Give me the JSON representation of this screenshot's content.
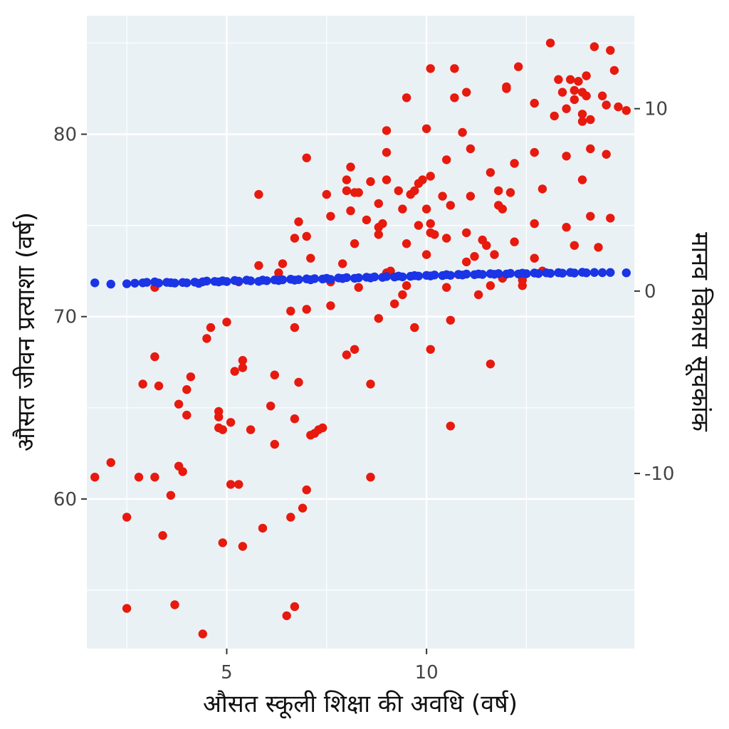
{
  "chart_data": {
    "type": "scatter",
    "xlabel": "औसत स्कूली शिक्षा की अवधि (वर्ष)",
    "ylabel": "औसत जीवन प्रत्याशा (वर्ष)",
    "y2label": "मानव विकास सूचकांक",
    "xlim": [
      1.5,
      15.2
    ],
    "ylim": [
      51.8,
      86.5
    ],
    "y2lim": [
      -19.6,
      15.1
    ],
    "x_ticks": [
      5,
      10
    ],
    "x_tick_labels": [
      "5",
      "10"
    ],
    "y_ticks": [
      60,
      70,
      80
    ],
    "y_tick_labels": [
      "60",
      "70",
      "80"
    ],
    "y2_ticks": [
      -10,
      0,
      10
    ],
    "y2_tick_labels": [
      "-10",
      "0",
      "10"
    ],
    "grid": true,
    "legend": "none",
    "colors": {
      "series1": "#e8190d",
      "series2": "#1a34e6",
      "panel": "#eaf1f5",
      "grid": "#ffffff"
    },
    "series": [
      {
        "axis": "left",
        "color": "#e8190d",
        "points": [
          [
            1.7,
            61.2
          ],
          [
            2.1,
            62.0
          ],
          [
            2.5,
            59.0
          ],
          [
            2.5,
            54.0
          ],
          [
            2.8,
            61.2
          ],
          [
            2.9,
            66.3
          ],
          [
            3.2,
            61.2
          ],
          [
            3.2,
            67.8
          ],
          [
            3.3,
            66.2
          ],
          [
            3.2,
            71.6
          ],
          [
            3.4,
            58.0
          ],
          [
            3.6,
            60.2
          ],
          [
            3.7,
            54.2
          ],
          [
            3.8,
            65.2
          ],
          [
            3.8,
            61.8
          ],
          [
            3.9,
            61.5
          ],
          [
            4.0,
            64.6
          ],
          [
            4.0,
            66.0
          ],
          [
            4.1,
            66.7
          ],
          [
            4.5,
            68.8
          ],
          [
            4.6,
            69.4
          ],
          [
            4.4,
            52.6
          ],
          [
            4.8,
            64.8
          ],
          [
            4.8,
            64.5
          ],
          [
            4.8,
            63.9
          ],
          [
            4.9,
            63.8
          ],
          [
            4.9,
            57.6
          ],
          [
            5.0,
            69.7
          ],
          [
            5.1,
            64.2
          ],
          [
            5.1,
            60.8
          ],
          [
            5.2,
            67.0
          ],
          [
            5.3,
            71.9
          ],
          [
            5.3,
            60.8
          ],
          [
            5.4,
            67.2
          ],
          [
            5.4,
            67.6
          ],
          [
            5.4,
            57.4
          ],
          [
            5.6,
            63.8
          ],
          [
            5.8,
            76.7
          ],
          [
            5.8,
            72.8
          ],
          [
            5.9,
            58.4
          ],
          [
            6.1,
            65.1
          ],
          [
            6.2,
            66.8
          ],
          [
            6.2,
            63.0
          ],
          [
            6.3,
            72.4
          ],
          [
            6.4,
            72.9
          ],
          [
            6.5,
            53.6
          ],
          [
            6.6,
            59.0
          ],
          [
            6.6,
            70.3
          ],
          [
            6.7,
            74.3
          ],
          [
            6.7,
            69.4
          ],
          [
            6.7,
            64.4
          ],
          [
            6.7,
            54.1
          ],
          [
            6.8,
            75.2
          ],
          [
            6.8,
            66.4
          ],
          [
            6.9,
            59.5
          ],
          [
            7.0,
            74.4
          ],
          [
            7.0,
            70.4
          ],
          [
            7.0,
            78.7
          ],
          [
            7.0,
            60.5
          ],
          [
            7.1,
            73.2
          ],
          [
            7.1,
            63.5
          ],
          [
            7.2,
            63.6
          ],
          [
            7.3,
            63.8
          ],
          [
            7.4,
            63.9
          ],
          [
            7.5,
            76.7
          ],
          [
            7.6,
            71.9
          ],
          [
            7.6,
            75.5
          ],
          [
            7.6,
            70.6
          ],
          [
            7.9,
            72.9
          ],
          [
            8.0,
            77.5
          ],
          [
            8.0,
            76.9
          ],
          [
            8.0,
            67.9
          ],
          [
            8.1,
            78.2
          ],
          [
            8.1,
            75.8
          ],
          [
            8.2,
            76.8
          ],
          [
            8.2,
            74.0
          ],
          [
            8.2,
            68.2
          ],
          [
            8.3,
            76.8
          ],
          [
            8.3,
            71.6
          ],
          [
            8.5,
            75.3
          ],
          [
            8.6,
            77.4
          ],
          [
            8.6,
            66.3
          ],
          [
            8.6,
            61.2
          ],
          [
            8.8,
            74.9
          ],
          [
            8.8,
            74.5
          ],
          [
            8.8,
            76.2
          ],
          [
            8.8,
            69.9
          ],
          [
            8.9,
            75.1
          ],
          [
            9.0,
            80.2
          ],
          [
            9.0,
            79.0
          ],
          [
            9.0,
            77.5
          ],
          [
            9.0,
            72.4
          ],
          [
            9.1,
            72.5
          ],
          [
            9.2,
            70.7
          ],
          [
            9.3,
            76.9
          ],
          [
            9.4,
            75.9
          ],
          [
            9.4,
            71.2
          ],
          [
            9.5,
            71.7
          ],
          [
            9.5,
            74.0
          ],
          [
            9.5,
            82.0
          ],
          [
            9.6,
            76.7
          ],
          [
            9.7,
            76.9
          ],
          [
            9.7,
            69.4
          ],
          [
            9.8,
            77.3
          ],
          [
            9.8,
            75.0
          ],
          [
            9.9,
            77.5
          ],
          [
            10.0,
            80.3
          ],
          [
            10.0,
            75.9
          ],
          [
            10.0,
            73.4
          ],
          [
            10.1,
            77.7
          ],
          [
            10.1,
            75.1
          ],
          [
            10.1,
            74.6
          ],
          [
            10.1,
            68.2
          ],
          [
            10.1,
            83.6
          ],
          [
            10.2,
            74.5
          ],
          [
            10.4,
            76.6
          ],
          [
            10.5,
            78.6
          ],
          [
            10.5,
            74.3
          ],
          [
            10.5,
            71.6
          ],
          [
            10.6,
            76.1
          ],
          [
            10.6,
            69.8
          ],
          [
            10.6,
            64.0
          ],
          [
            10.7,
            83.6
          ],
          [
            10.7,
            82.0
          ],
          [
            10.8,
            72.3
          ],
          [
            10.9,
            80.1
          ],
          [
            11.0,
            82.3
          ],
          [
            11.0,
            74.6
          ],
          [
            11.0,
            73.0
          ],
          [
            11.1,
            79.2
          ],
          [
            11.1,
            76.6
          ],
          [
            11.2,
            73.3
          ],
          [
            11.3,
            71.2
          ],
          [
            11.4,
            74.2
          ],
          [
            11.5,
            73.9
          ],
          [
            11.6,
            71.7
          ],
          [
            11.6,
            67.4
          ],
          [
            11.6,
            77.9
          ],
          [
            11.7,
            73.4
          ],
          [
            11.8,
            76.9
          ],
          [
            11.8,
            76.1
          ],
          [
            11.9,
            75.9
          ],
          [
            11.9,
            72.1
          ],
          [
            12.0,
            82.5
          ],
          [
            12.0,
            82.6
          ],
          [
            12.1,
            76.8
          ],
          [
            12.2,
            78.4
          ],
          [
            12.2,
            74.1
          ],
          [
            12.3,
            83.7
          ],
          [
            12.4,
            71.7
          ],
          [
            12.4,
            72.0
          ],
          [
            12.7,
            81.7
          ],
          [
            12.7,
            79.0
          ],
          [
            12.7,
            75.1
          ],
          [
            12.7,
            73.2
          ],
          [
            12.9,
            77.0
          ],
          [
            12.9,
            72.5
          ],
          [
            13.1,
            85.0
          ],
          [
            13.2,
            81.0
          ],
          [
            13.3,
            83.0
          ],
          [
            13.4,
            82.3
          ],
          [
            13.5,
            81.4
          ],
          [
            13.5,
            78.8
          ],
          [
            13.5,
            74.9
          ],
          [
            13.6,
            83.0
          ],
          [
            13.7,
            82.4
          ],
          [
            13.7,
            81.9
          ],
          [
            13.7,
            73.9
          ],
          [
            13.8,
            82.9
          ],
          [
            13.9,
            82.3
          ],
          [
            13.9,
            81.1
          ],
          [
            13.9,
            80.7
          ],
          [
            13.9,
            77.5
          ],
          [
            14.0,
            83.2
          ],
          [
            14.0,
            82.1
          ],
          [
            14.1,
            80.8
          ],
          [
            14.1,
            75.5
          ],
          [
            14.1,
            79.2
          ],
          [
            14.2,
            84.8
          ],
          [
            14.3,
            73.8
          ],
          [
            14.4,
            82.1
          ],
          [
            14.5,
            81.6
          ],
          [
            14.5,
            78.9
          ],
          [
            14.6,
            84.6
          ],
          [
            14.6,
            75.4
          ],
          [
            14.7,
            83.5
          ],
          [
            14.8,
            81.5
          ],
          [
            15.0,
            81.3
          ]
        ]
      },
      {
        "axis": "right",
        "color": "#1a34e6",
        "points": [
          [
            1.7,
            0.45
          ],
          [
            2.1,
            0.38
          ],
          [
            2.5,
            0.4
          ],
          [
            2.7,
            0.43
          ],
          [
            2.9,
            0.45
          ],
          [
            3.0,
            0.48
          ],
          [
            3.2,
            0.5
          ],
          [
            3.3,
            0.44
          ],
          [
            3.5,
            0.48
          ],
          [
            3.6,
            0.46
          ],
          [
            3.7,
            0.44
          ],
          [
            3.9,
            0.47
          ],
          [
            4.0,
            0.45
          ],
          [
            4.2,
            0.49
          ],
          [
            4.3,
            0.42
          ],
          [
            4.4,
            0.51
          ],
          [
            4.5,
            0.55
          ],
          [
            4.7,
            0.53
          ],
          [
            4.8,
            0.5
          ],
          [
            4.9,
            0.56
          ],
          [
            5.0,
            0.52
          ],
          [
            5.2,
            0.58
          ],
          [
            5.3,
            0.54
          ],
          [
            5.5,
            0.6
          ],
          [
            5.6,
            0.56
          ],
          [
            5.8,
            0.53
          ],
          [
            5.9,
            0.6
          ],
          [
            6.0,
            0.57
          ],
          [
            6.2,
            0.61
          ],
          [
            6.3,
            0.58
          ],
          [
            6.4,
            0.62
          ],
          [
            6.6,
            0.65
          ],
          [
            6.7,
            0.6
          ],
          [
            6.8,
            0.63
          ],
          [
            7.0,
            0.67
          ],
          [
            7.1,
            0.62
          ],
          [
            7.2,
            0.68
          ],
          [
            7.4,
            0.66
          ],
          [
            7.5,
            0.7
          ],
          [
            7.6,
            0.64
          ],
          [
            7.8,
            0.72
          ],
          [
            7.9,
            0.69
          ],
          [
            8.0,
            0.74
          ],
          [
            8.2,
            0.7
          ],
          [
            8.3,
            0.73
          ],
          [
            8.5,
            0.76
          ],
          [
            8.6,
            0.72
          ],
          [
            8.7,
            0.78
          ],
          [
            8.9,
            0.75
          ],
          [
            9.0,
            0.8
          ],
          [
            9.2,
            0.77
          ],
          [
            9.3,
            0.82
          ],
          [
            9.4,
            0.78
          ],
          [
            9.6,
            0.81
          ],
          [
            9.7,
            0.85
          ],
          [
            9.8,
            0.82
          ],
          [
            10.0,
            0.86
          ],
          [
            10.1,
            0.83
          ],
          [
            10.2,
            0.88
          ],
          [
            10.4,
            0.85
          ],
          [
            10.5,
            0.9
          ],
          [
            10.6,
            0.86
          ],
          [
            10.8,
            0.91
          ],
          [
            10.9,
            0.88
          ],
          [
            11.0,
            0.93
          ],
          [
            11.2,
            0.9
          ],
          [
            11.3,
            0.94
          ],
          [
            11.4,
            0.91
          ],
          [
            11.6,
            0.95
          ],
          [
            11.7,
            0.92
          ],
          [
            11.8,
            0.96
          ],
          [
            12.0,
            0.93
          ],
          [
            12.1,
            0.97
          ],
          [
            12.3,
            0.94
          ],
          [
            12.4,
            0.98
          ],
          [
            12.5,
            0.95
          ],
          [
            12.7,
            0.99
          ],
          [
            12.8,
            0.96
          ],
          [
            13.0,
            1.0
          ],
          [
            13.1,
            0.97
          ],
          [
            13.3,
            1.01
          ],
          [
            13.4,
            0.98
          ],
          [
            13.6,
            1.02
          ],
          [
            13.7,
            0.99
          ],
          [
            13.9,
            1.03
          ],
          [
            14.0,
            1.0
          ],
          [
            14.2,
            1.02
          ],
          [
            14.4,
            1.01
          ],
          [
            14.6,
            1.02
          ],
          [
            15.0,
            1.0
          ]
        ]
      }
    ]
  }
}
